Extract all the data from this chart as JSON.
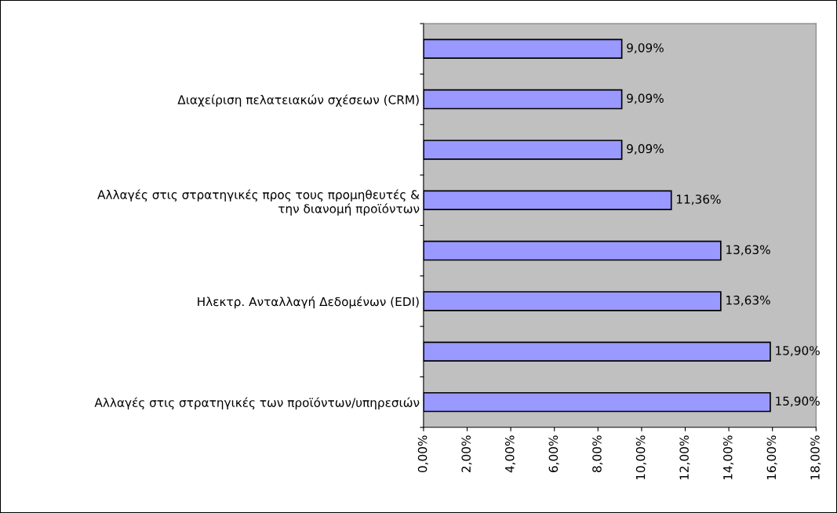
{
  "chart_data": {
    "type": "bar",
    "orientation": "horizontal",
    "categories": [
      null,
      "Διαχείριση πελατειακών σχέσεων (CRM)",
      null,
      "Αλλαγές στις στρατηγικές προς τους προμηθευτές & την διανομή προϊόντων",
      null,
      "Ηλεκτρ. Ανταλλαγή Δεδομένων (EDI)",
      null,
      "Αλλαγές στις στρατηγικές των προϊόντων/υπηρεσιών"
    ],
    "values": [
      9.09,
      9.09,
      9.09,
      11.36,
      13.63,
      13.63,
      15.9,
      15.9
    ],
    "value_labels": [
      "9,09%",
      "9,09%",
      "9,09%",
      "11,36%",
      "13,63%",
      "13,63%",
      "15,90%",
      "15,90%"
    ],
    "color": "#9999ff",
    "xlim": [
      0,
      18
    ],
    "xticks": [
      {
        "value": 0,
        "label": "0,00%"
      },
      {
        "value": 2,
        "label": "2,00%"
      },
      {
        "value": 4,
        "label": "4,00%"
      },
      {
        "value": 6,
        "label": "6,00%"
      },
      {
        "value": 8,
        "label": "8,00%"
      },
      {
        "value": 10,
        "label": "10,00%"
      },
      {
        "value": 12,
        "label": "12,00%"
      },
      {
        "value": 14,
        "label": "14,00%"
      },
      {
        "value": 16,
        "label": "16,00%"
      },
      {
        "value": 18,
        "label": "18,00%"
      }
    ],
    "grid": false
  }
}
